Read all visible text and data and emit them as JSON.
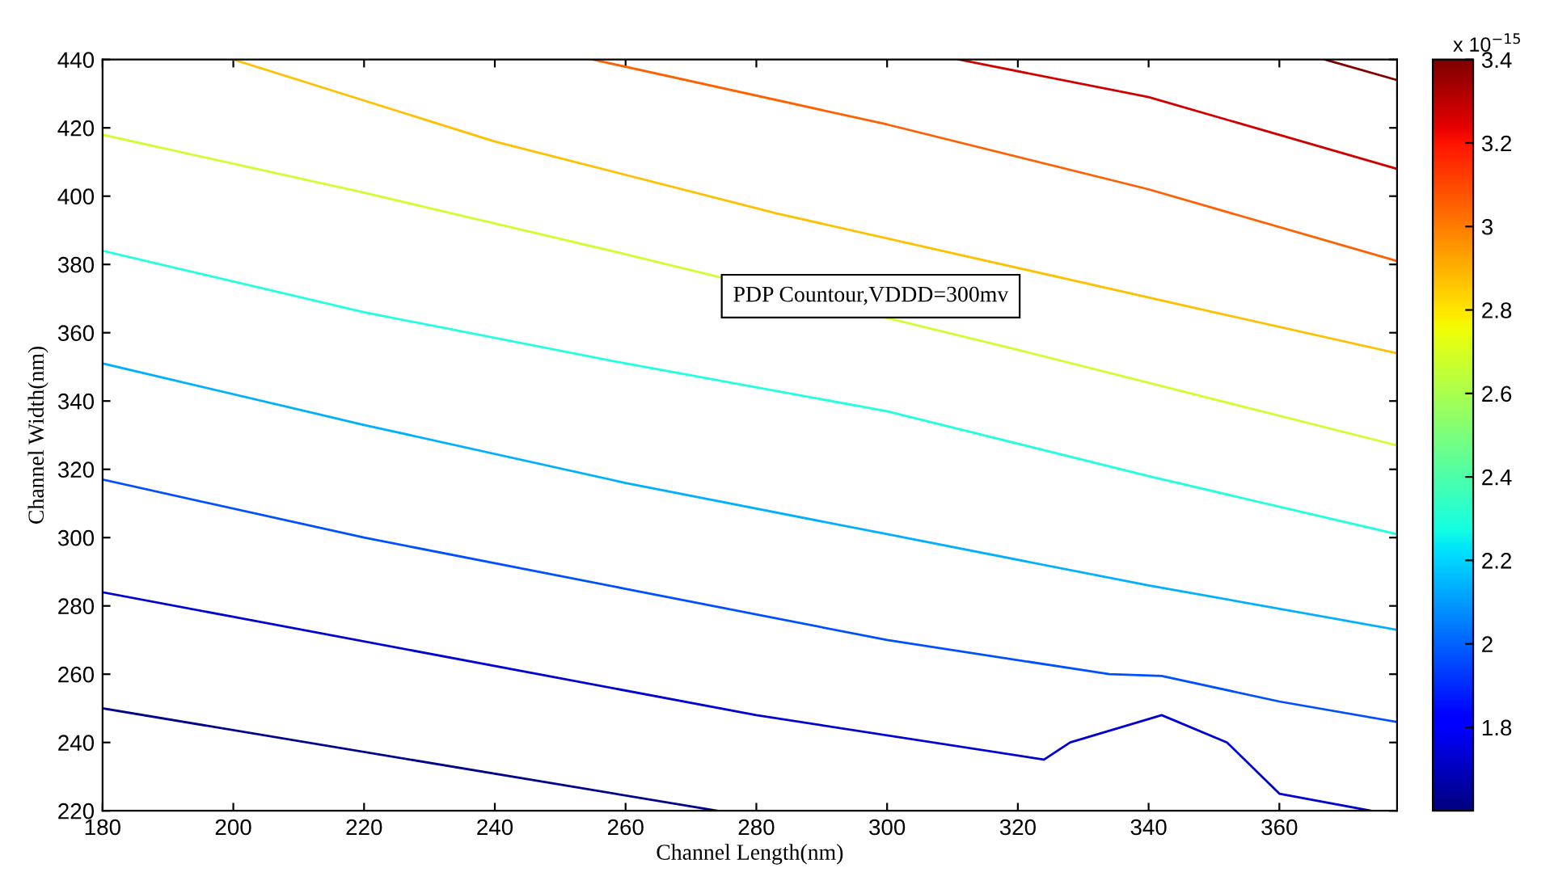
{
  "chart_data": {
    "type": "line",
    "xlabel": "Channel Length(nm)",
    "ylabel": "Channel Width(nm)",
    "xlim": [
      180,
      378
    ],
    "ylim": [
      220,
      440
    ],
    "xticks": [
      180,
      200,
      220,
      240,
      260,
      280,
      300,
      320,
      340,
      360
    ],
    "yticks": [
      220,
      240,
      260,
      280,
      300,
      320,
      340,
      360,
      380,
      400,
      420,
      440
    ],
    "clim": [
      1.6,
      3.4
    ],
    "cticks": [
      1.8,
      2,
      2.2,
      2.4,
      2.6,
      2.8,
      3,
      3.2,
      3.4
    ],
    "clabel": "x 10$^{−15}$",
    "annotations": [
      "PDP Countour,VDDD=300mv"
    ],
    "grid": false,
    "series": [
      {
        "color": "#00008f",
        "x": [
          180,
          274
        ],
        "values": [
          250,
          220
        ]
      },
      {
        "color": "#0000d0",
        "x": [
          180,
          280,
          324,
          328,
          342,
          352,
          360,
          374
        ],
        "values": [
          284,
          248,
          235,
          240,
          248,
          240,
          225,
          220
        ]
      },
      {
        "color": "#0050ff",
        "x": [
          180,
          220,
          260,
          300,
          334,
          342,
          360,
          378
        ],
        "values": [
          317,
          300,
          285,
          270,
          260,
          259.5,
          252,
          246
        ]
      },
      {
        "color": "#00b0ff",
        "x": [
          180,
          220,
          260,
          300,
          340,
          378
        ],
        "values": [
          351,
          333,
          316,
          301,
          286,
          273
        ]
      },
      {
        "color": "#20ffe0",
        "x": [
          180,
          220,
          260,
          300,
          340,
          378
        ],
        "values": [
          384,
          366,
          351,
          337,
          318,
          301
        ]
      },
      {
        "color": "#d0ff30",
        "x": [
          180,
          220,
          260,
          320,
          378
        ],
        "values": [
          418,
          401,
          383,
          355,
          327
        ]
      },
      {
        "color": "#ffc000",
        "x": [
          200,
          240,
          283,
          350,
          378
        ],
        "values": [
          440,
          416,
          395,
          366,
          354
        ]
      },
      {
        "color": "#ff6000",
        "x": [
          255,
          300,
          340,
          378
        ],
        "values": [
          440,
          421,
          402,
          381
        ]
      },
      {
        "color": "#d00000",
        "x": [
          311,
          340,
          378
        ],
        "values": [
          440,
          429,
          408
        ]
      },
      {
        "color": "#800000",
        "x": [
          367,
          378
        ],
        "values": [
          440,
          434
        ]
      }
    ]
  }
}
